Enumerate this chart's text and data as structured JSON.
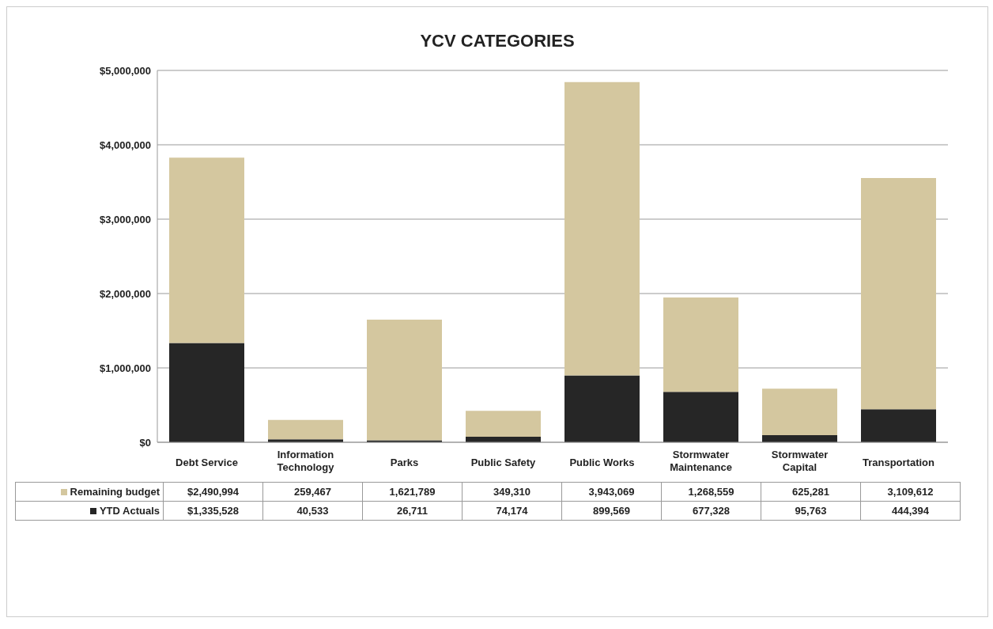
{
  "chart_data": {
    "type": "bar",
    "title": "YCV CATEGORIES",
    "stacked": true,
    "categories": [
      "Debt Service",
      "Information Technology",
      "Parks",
      "Public Safety",
      "Public Works",
      "Stormwater Maintenance",
      "Stormwater Capital",
      "Transportation"
    ],
    "series": [
      {
        "name": "YTD Actuals",
        "color": "#262626",
        "values": [
          1335528,
          40533,
          26711,
          74174,
          899569,
          677328,
          95763,
          444394
        ],
        "value_labels": [
          "$1,335,528",
          "40,533",
          "26,711",
          "74,174",
          "899,569",
          "677,328",
          "95,763",
          "444,394"
        ]
      },
      {
        "name": "Remaining budget",
        "color": "#d4c79f",
        "values": [
          2490994,
          259467,
          1621789,
          349310,
          3943069,
          1268559,
          625281,
          3109612
        ],
        "value_labels": [
          "$2,490,994",
          "259,467",
          "1,621,789",
          "349,310",
          "3,943,069",
          "1,268,559",
          "625,281",
          "3,109,612"
        ]
      }
    ],
    "ylim": [
      0,
      5000000
    ],
    "yticks": [
      {
        "value": 0,
        "label": "$0"
      },
      {
        "value": 1000000,
        "label": "$1,000,000"
      },
      {
        "value": 2000000,
        "label": "$2,000,000"
      },
      {
        "value": 3000000,
        "label": "$3,000,000"
      },
      {
        "value": 4000000,
        "label": "$4,000,000"
      },
      {
        "value": 5000000,
        "label": "$5,000,000"
      }
    ],
    "grid": "y",
    "legend": "bottom"
  }
}
